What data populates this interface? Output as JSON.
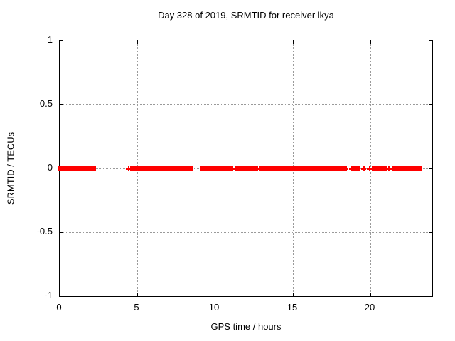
{
  "chart_data": {
    "type": "scatter",
    "title": "Day 328 of 2019, SRMTID for receiver lkya",
    "xlabel": "GPS time / hours",
    "ylabel": "SRMTID / TECUs",
    "xlim": [
      0,
      24
    ],
    "ylim": [
      -1,
      1
    ],
    "xticks": [
      {
        "value": 0,
        "label": "0"
      },
      {
        "value": 5,
        "label": "5"
      },
      {
        "value": 10,
        "label": "10"
      },
      {
        "value": 15,
        "label": "15"
      },
      {
        "value": 20,
        "label": "20"
      }
    ],
    "yticks": [
      {
        "value": 1,
        "label": "1"
      },
      {
        "value": 0.5,
        "label": "0.5"
      },
      {
        "value": 0,
        "label": "0"
      },
      {
        "value": -0.5,
        "label": "-0.5"
      },
      {
        "value": -1,
        "label": "-1"
      }
    ],
    "grid": true,
    "legend_position": "none",
    "marker": "plus",
    "colors": {
      "marker": "#ff0000",
      "border": "#000000",
      "grid": "#9a9a9a",
      "background": "#ffffff",
      "text": "#000000"
    },
    "series": [
      {
        "name": "SRMTID",
        "color": "#ff0000",
        "y_value": 0,
        "dense_segments_hours": [
          [
            0.0,
            0.3
          ],
          [
            0.4,
            1.38
          ],
          [
            1.52,
            1.88
          ],
          [
            2.02,
            2.2
          ],
          [
            4.78,
            4.93
          ],
          [
            5.03,
            8.4
          ],
          [
            9.22,
            10.95
          ],
          [
            11.5,
            12.6
          ],
          [
            13.0,
            13.45
          ],
          [
            13.8,
            14.22
          ],
          [
            14.35,
            14.46
          ],
          [
            14.55,
            18.27
          ],
          [
            19.05,
            19.25
          ],
          [
            20.25,
            20.47
          ],
          [
            20.63,
            20.85
          ],
          [
            21.54,
            22.3
          ],
          [
            22.6,
            23.2
          ]
        ],
        "isolated_points_hours": [
          4.43,
          4.55,
          4.66,
          11.1,
          11.3,
          12.7,
          12.85,
          13.6,
          18.45,
          18.8,
          19.6,
          19.95,
          21.0,
          21.2,
          21.4,
          22.42
        ]
      }
    ]
  }
}
